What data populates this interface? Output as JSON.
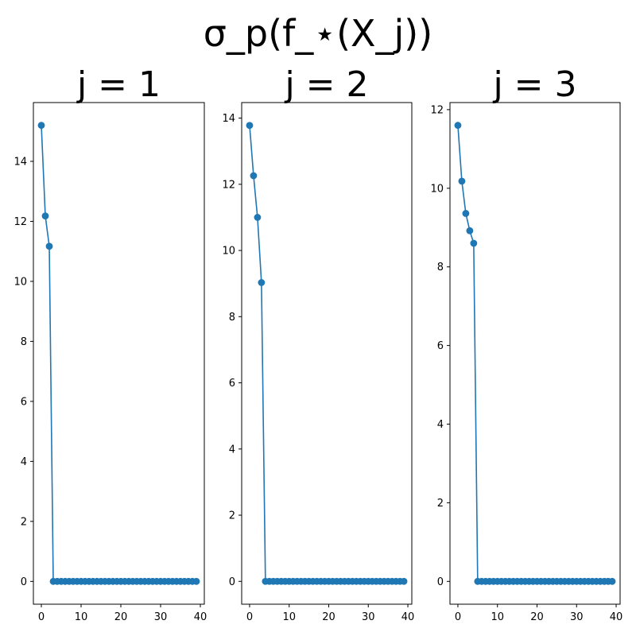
{
  "figure": {
    "title": "σ_p(f_⋆(X_j))"
  },
  "style": {
    "series_color": "#1f77b4",
    "axis_color": "#000000",
    "background": "#ffffff"
  },
  "chart_data": [
    {
      "type": "line",
      "title": "j = 1",
      "markers": true,
      "grid": false,
      "xlim": [
        -2,
        41
      ],
      "ylim": [
        -0.76,
        15.96
      ],
      "xticks": [
        0,
        10,
        20,
        30,
        40
      ],
      "yticks": [
        0,
        2,
        4,
        6,
        8,
        10,
        12,
        14
      ],
      "x": [
        0,
        1,
        2,
        3,
        4,
        5,
        6,
        7,
        8,
        9,
        10,
        11,
        12,
        13,
        14,
        15,
        16,
        17,
        18,
        19,
        20,
        21,
        22,
        23,
        24,
        25,
        26,
        27,
        28,
        29,
        30,
        31,
        32,
        33,
        34,
        35,
        36,
        37,
        38,
        39
      ],
      "values": [
        15.2,
        12.18,
        11.17,
        0,
        0,
        0,
        0,
        0,
        0,
        0,
        0,
        0,
        0,
        0,
        0,
        0,
        0,
        0,
        0,
        0,
        0,
        0,
        0,
        0,
        0,
        0,
        0,
        0,
        0,
        0,
        0,
        0,
        0,
        0,
        0,
        0,
        0,
        0,
        0,
        0
      ]
    },
    {
      "type": "line",
      "title": "j = 2",
      "markers": true,
      "grid": false,
      "xlim": [
        -2,
        41
      ],
      "ylim": [
        -0.69,
        14.47
      ],
      "xticks": [
        0,
        10,
        20,
        30,
        40
      ],
      "yticks": [
        0,
        2,
        4,
        6,
        8,
        10,
        12,
        14
      ],
      "x": [
        0,
        1,
        2,
        3,
        4,
        5,
        6,
        7,
        8,
        9,
        10,
        11,
        12,
        13,
        14,
        15,
        16,
        17,
        18,
        19,
        20,
        21,
        22,
        23,
        24,
        25,
        26,
        27,
        28,
        29,
        30,
        31,
        32,
        33,
        34,
        35,
        36,
        37,
        38,
        39
      ],
      "values": [
        13.78,
        12.26,
        11.0,
        9.03,
        0,
        0,
        0,
        0,
        0,
        0,
        0,
        0,
        0,
        0,
        0,
        0,
        0,
        0,
        0,
        0,
        0,
        0,
        0,
        0,
        0,
        0,
        0,
        0,
        0,
        0,
        0,
        0,
        0,
        0,
        0,
        0,
        0,
        0,
        0,
        0
      ]
    },
    {
      "type": "line",
      "title": "j = 3",
      "markers": true,
      "grid": false,
      "xlim": [
        -2,
        41
      ],
      "ylim": [
        -0.58,
        12.18
      ],
      "xticks": [
        0,
        10,
        20,
        30,
        40
      ],
      "yticks": [
        0,
        2,
        4,
        6,
        8,
        10,
        12
      ],
      "x": [
        0,
        1,
        2,
        3,
        4,
        5,
        6,
        7,
        8,
        9,
        10,
        11,
        12,
        13,
        14,
        15,
        16,
        17,
        18,
        19,
        20,
        21,
        22,
        23,
        24,
        25,
        26,
        27,
        28,
        29,
        30,
        31,
        32,
        33,
        34,
        35,
        36,
        37,
        38,
        39
      ],
      "values": [
        11.6,
        10.18,
        9.36,
        8.92,
        8.6,
        0,
        0,
        0,
        0,
        0,
        0,
        0,
        0,
        0,
        0,
        0,
        0,
        0,
        0,
        0,
        0,
        0,
        0,
        0,
        0,
        0,
        0,
        0,
        0,
        0,
        0,
        0,
        0,
        0,
        0,
        0,
        0,
        0,
        0,
        0
      ]
    }
  ]
}
